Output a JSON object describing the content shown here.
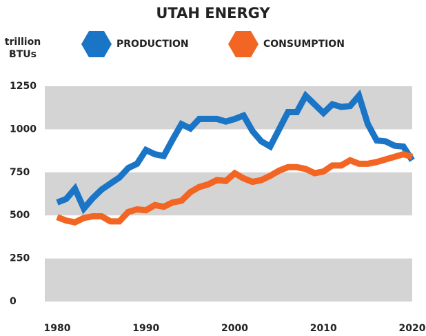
{
  "chart_data": {
    "type": "line",
    "title": "UTAH ENERGY",
    "y_label": "trillion BTUs",
    "x": [
      1980,
      1981,
      1982,
      1983,
      1984,
      1985,
      1986,
      1987,
      1988,
      1989,
      1990,
      1991,
      1992,
      1993,
      1994,
      1995,
      1996,
      1997,
      1998,
      1999,
      2000,
      2001,
      2002,
      2003,
      2004,
      2005,
      2006,
      2007,
      2008,
      2009,
      2010,
      2011,
      2012,
      2013,
      2014,
      2015,
      2016,
      2017,
      2018,
      2019,
      2020
    ],
    "series": [
      {
        "name": "PRODUCTION",
        "color": "#1a75c6",
        "values": [
          575,
          595,
          655,
          540,
          600,
          650,
          685,
          720,
          775,
          800,
          880,
          855,
          845,
          940,
          1030,
          1005,
          1060,
          1060,
          1060,
          1045,
          1060,
          1080,
          990,
          930,
          900,
          1000,
          1100,
          1100,
          1195,
          1145,
          1095,
          1145,
          1130,
          1135,
          1195,
          1030,
          935,
          930,
          905,
          900,
          820
        ]
      },
      {
        "name": "CONSUMPTION",
        "color": "#f26522",
        "values": [
          490,
          470,
          460,
          485,
          495,
          495,
          465,
          465,
          520,
          535,
          530,
          560,
          550,
          575,
          585,
          635,
          665,
          680,
          705,
          700,
          745,
          715,
          695,
          705,
          730,
          760,
          780,
          780,
          770,
          745,
          755,
          790,
          790,
          820,
          800,
          800,
          810,
          825,
          840,
          855,
          840
        ]
      }
    ],
    "xlim": [
      1980,
      2020
    ],
    "xticks": [
      1980,
      1990,
      2000,
      2010,
      2020
    ],
    "ylim": [
      0,
      1250
    ],
    "yticks": [
      0,
      250,
      500,
      750,
      1000,
      1250
    ],
    "grid": "bands"
  }
}
